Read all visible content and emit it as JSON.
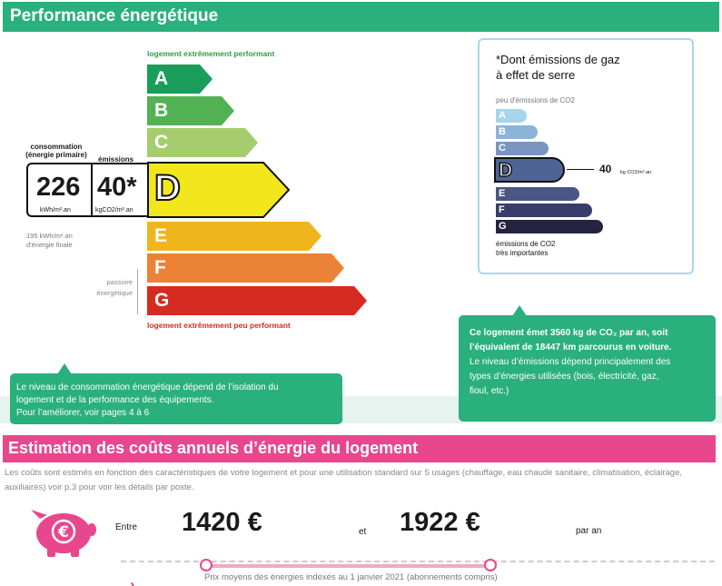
{
  "section1": {
    "title": "Performance énergétique"
  },
  "scale": {
    "top_label": "logement extrêmement performant",
    "bottom_label": "logement extrêmement peu performant",
    "classes": [
      {
        "letter": "A",
        "color": "#1a9d5a"
      },
      {
        "letter": "B",
        "color": "#52b153"
      },
      {
        "letter": "C",
        "color": "#a5cd6e"
      },
      {
        "letter": "D",
        "color": "#f2e61d"
      },
      {
        "letter": "E",
        "color": "#f0b41c"
      },
      {
        "letter": "F",
        "color": "#ec8235"
      },
      {
        "letter": "G",
        "color": "#d62b21"
      }
    ],
    "current_class": "D"
  },
  "consumption": {
    "label_consumption": "consommation",
    "label_primary": "(énergie primaire)",
    "label_emissions": "émissions",
    "value": "226",
    "unit": "kWh/m².an",
    "emissions_value": "40*",
    "emissions_unit": "kgCO2/m².an",
    "final_energy_line1": "195 kWh/m².an",
    "final_energy_line2": "d'énergie finale",
    "passoire_line1": "passoire",
    "passoire_line2": "énergétique"
  },
  "ges": {
    "title_line1": "*Dont émissions de gaz",
    "title_line2": "à effet de serre",
    "top_label": "peu d'émissions de CO2",
    "bottom_label_line1": "émissions de CO2",
    "bottom_label_line2": "très importantes",
    "classes": [
      {
        "letter": "A",
        "color": "#a6d5ec"
      },
      {
        "letter": "B",
        "color": "#8cb4d6"
      },
      {
        "letter": "C",
        "color": "#7c94c1"
      },
      {
        "letter": "D",
        "color": "#4e6495"
      },
      {
        "letter": "E",
        "color": "#4a5684"
      },
      {
        "letter": "F",
        "color": "#383d6a"
      },
      {
        "letter": "G",
        "color": "#252440"
      }
    ],
    "current_class": "D",
    "value": "40",
    "unit": "kg CO2/m².an"
  },
  "callout_left": {
    "line1": "Le niveau de consommation énergétique dépend de l’isolation du",
    "line2": "logement et de la performance des équipements.",
    "line3": "Pour l’améliorer, voir pages 4 à 6"
  },
  "callout_right": {
    "line1": "Ce logement émet 3560 kg de CO₂ par an, soit",
    "line2": "l’équivalent de 18447  km parcourus en voiture.",
    "line3": "Le niveau d’émissions dépend principalement des",
    "line4": "types d’énergies utilisées (bois, électricité, gaz,",
    "line5": "fioul, etc.)"
  },
  "section2": {
    "title": "Estimation des coûts annuels d’énergie du logement",
    "description": "Les coûts sont estimés en fonction des caractéristiques de votre logement et pour une utilisation standard sur 5 usages (chauffage, eau chaude sanitaire, climatisation, éclairage, auxiliaires) voir p.3 pour voir les détails par poste.",
    "entre": "Entre",
    "min_cost": "1420 €",
    "et": "et",
    "max_cost": "1922 €",
    "per_year": "par an",
    "price_note": "Prix moyens des énergies indexés au 1 janvier 2021 (abonnements compris)",
    "pig_icon": "piggy-bank-euro-icon",
    "accent": "#e8478d"
  }
}
